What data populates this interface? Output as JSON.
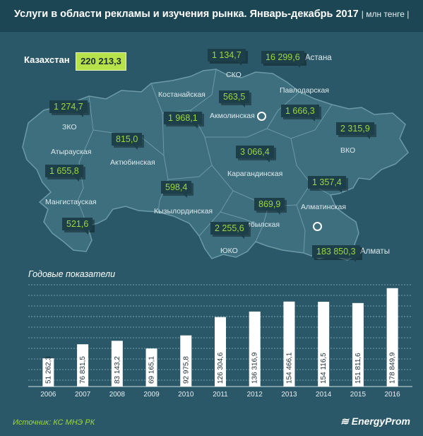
{
  "header": {
    "title": "Услуги в области  рекламы и изучения рынка. Январь-декабрь 2017",
    "unit": "| млн тенге |"
  },
  "kazakhstan": {
    "label": "Казахстан",
    "value": "220 213,3"
  },
  "regions": [
    {
      "name": "ЗКО",
      "value": "1 274,7"
    },
    {
      "name": "Атырауская",
      "value": "1 655,8"
    },
    {
      "name": "Мангистауская",
      "value": "521,6"
    },
    {
      "name": "Актюбинская",
      "value": "815,0"
    },
    {
      "name": "Костанайская",
      "value": "1 968,1"
    },
    {
      "name": "СКО",
      "value": "1 134,7"
    },
    {
      "name": "Акмолинская",
      "value": "563,5"
    },
    {
      "name": "Астана",
      "value": "16 299,6"
    },
    {
      "name": "Павлодарская",
      "value": "1 666,3"
    },
    {
      "name": "ВКО",
      "value": "2 315,9"
    },
    {
      "name": "Карагандинская",
      "value": "3 066,4"
    },
    {
      "name": "Кызылординская",
      "value": "598,4"
    },
    {
      "name": "Жамбылская",
      "value": "869,9"
    },
    {
      "name": "ЮКО",
      "value": "2 255,6"
    },
    {
      "name": "Алматинская",
      "value": "1 357,4"
    },
    {
      "name": "Алматы",
      "value": "183 850,3"
    }
  ],
  "chart_title": "Годовые показатели",
  "chart_data": {
    "type": "bar",
    "title": "Годовые показатели",
    "categories": [
      "2006",
      "2007",
      "2008",
      "2009",
      "2010",
      "2011",
      "2012",
      "2013",
      "2014",
      "2015",
      "2016"
    ],
    "values": [
      51262.3,
      76831.5,
      83143.2,
      69165.1,
      92975.8,
      126304.6,
      136316.9,
      154466.1,
      154116.5,
      151811.6,
      178849.9
    ],
    "value_labels": [
      "51 262,3",
      "76 831,5",
      "83 143,2",
      "69 165,1",
      "92 975,8",
      "126 304,6",
      "136 316,9",
      "154 466,1",
      "154 116,5",
      "151 811,6",
      "178 849,9"
    ],
    "ylim": [
      0,
      185000
    ],
    "grid": true,
    "bar_color": "#ffffff"
  },
  "footer": {
    "source": "Источник: КС МНЭ РК",
    "logo": "EnergyProm"
  },
  "colors": {
    "background": "#2a5868",
    "map": "#3d6f7e",
    "value_text": "#9fd73c",
    "total_box": "#b7e24a"
  }
}
